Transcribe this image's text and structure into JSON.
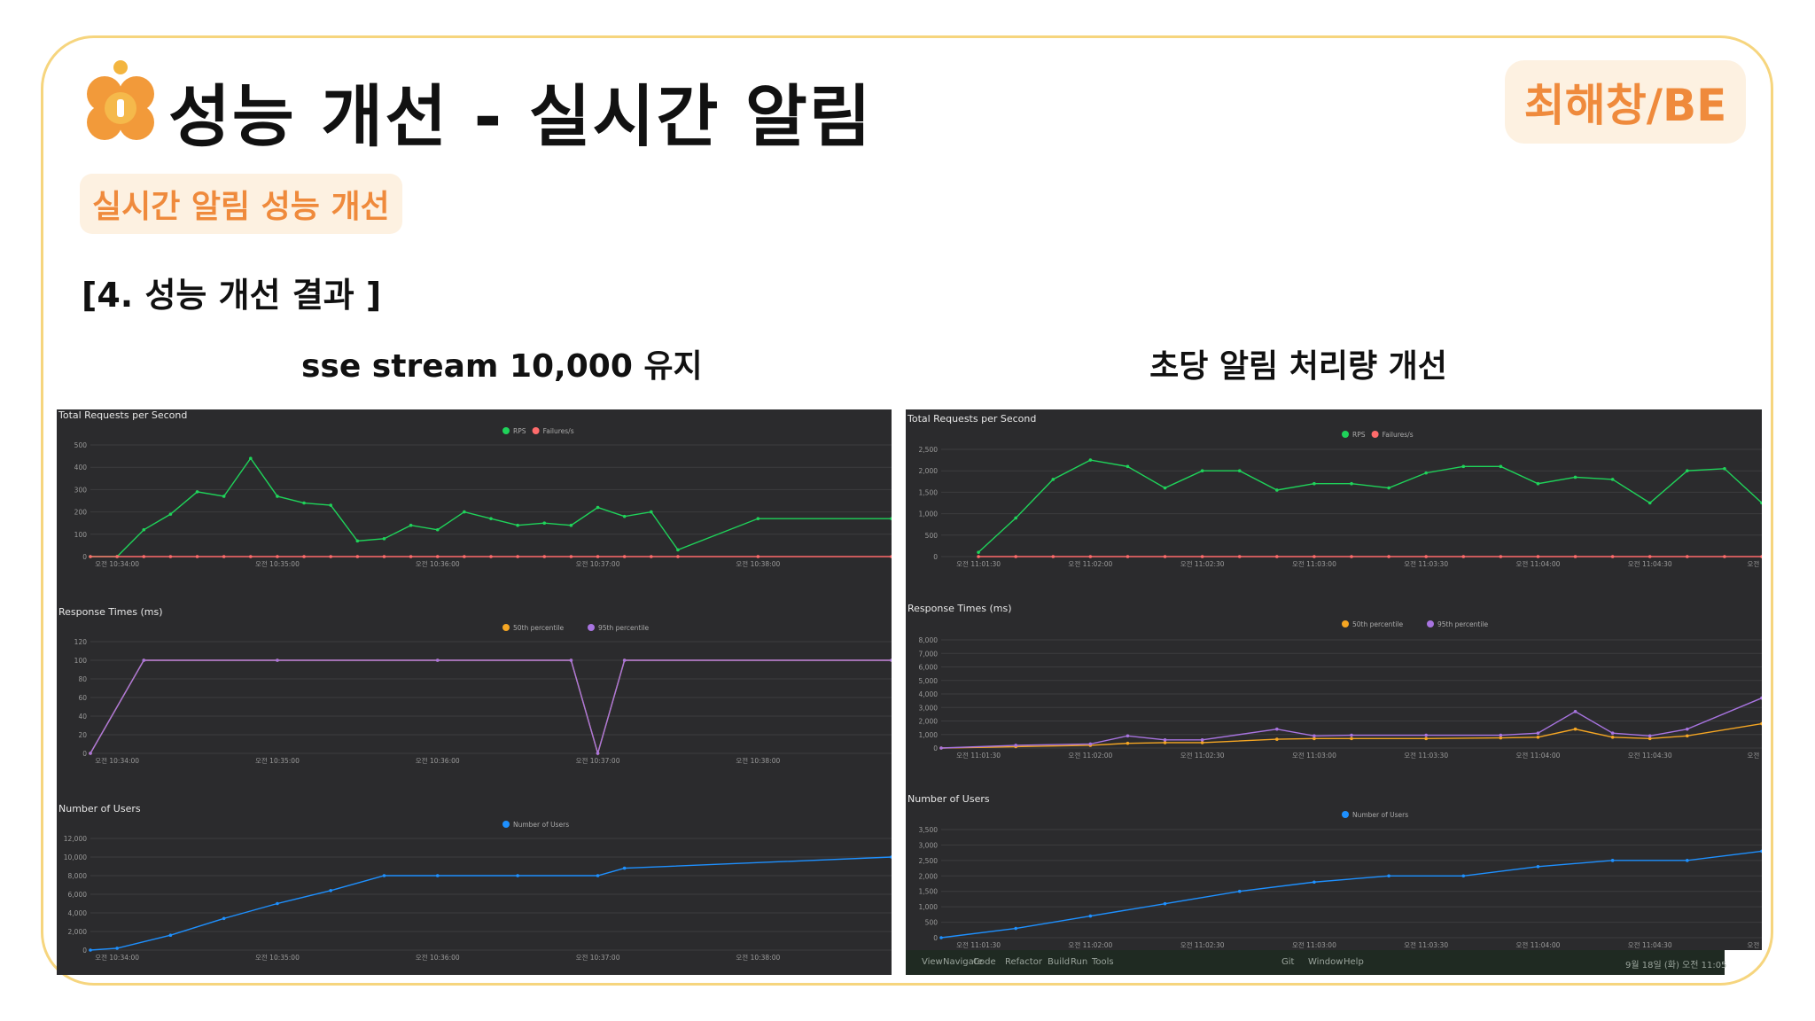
{
  "header": {
    "title": "성능 개선 - 실시간 알림",
    "author_badge": "최해창/BE",
    "subtitle": "실시간 알림 성능 개선",
    "section": "[4. 성능 개선 결과 ]"
  },
  "colors": {
    "accent": "#ef8a3c",
    "badge_bg": "#fdf1e1",
    "frame": "#f6d57e",
    "panel_bg": "#2b2b2d",
    "rps": "#1fd35a",
    "failures": "#ff6b6b",
    "p50": "#f5a623",
    "p95": "#a874e0",
    "users": "#1e90ff"
  },
  "left": {
    "caption": "sse stream 10,000 유지",
    "charts": {
      "rps": {
        "title": "Total Requests per Second",
        "legend": [
          "RPS",
          "Failures/s"
        ],
        "yticks": [
          "0",
          "100",
          "200",
          "300",
          "400",
          "500"
        ],
        "xticks": [
          "오전 10:34:00",
          "오전 10:35:00",
          "오전 10:36:00",
          "오전 10:37:00",
          "오전 10:38:00"
        ]
      },
      "response": {
        "title": "Response Times (ms)",
        "legend": [
          "50th percentile",
          "95th percentile"
        ],
        "yticks": [
          "0",
          "20",
          "40",
          "60",
          "80",
          "100",
          "120"
        ],
        "xticks": [
          "오전 10:34:00",
          "오전 10:35:00",
          "오전 10:36:00",
          "오전 10:37:00",
          "오전 10:38:00"
        ]
      },
      "users": {
        "title": "Number of Users",
        "legend": [
          "Number of Users"
        ],
        "yticks": [
          "0",
          "2,000",
          "4,000",
          "6,000",
          "8,000",
          "10,000",
          "12,000"
        ],
        "xticks": [
          "오전 10:34:00",
          "오전 10:35:00",
          "오전 10:36:00",
          "오전 10:37:00",
          "오전 10:38:00"
        ]
      }
    }
  },
  "right": {
    "caption": "초당 알림 처리량 개선",
    "charts": {
      "rps": {
        "title": "Total Requests per Second",
        "legend": [
          "RPS",
          "Failures/s"
        ],
        "yticks": [
          "0",
          "500",
          "1,000",
          "1,500",
          "2,000",
          "2,500"
        ],
        "xticks": [
          "오전 11:01:30",
          "오전 11:02:00",
          "오전 11:02:30",
          "오전 11:03:00",
          "오전 11:03:30",
          "오전 11:04:00",
          "오전 11:04:30",
          "오전 11:0"
        ]
      },
      "response": {
        "title": "Response Times (ms)",
        "legend": [
          "50th percentile",
          "95th percentile"
        ],
        "yticks": [
          "0",
          "1,000",
          "2,000",
          "3,000",
          "4,000",
          "5,000",
          "6,000",
          "7,000",
          "8,000"
        ],
        "xticks": [
          "오전 11:01:30",
          "오전 11:02:00",
          "오전 11:02:30",
          "오전 11:03:00",
          "오전 11:03:30",
          "오전 11:04:00",
          "오전 11:04:30",
          "오전 11:0"
        ]
      },
      "users": {
        "title": "Number of Users",
        "legend": [
          "Number of Users"
        ],
        "yticks": [
          "0",
          "500",
          "1,000",
          "1,500",
          "2,000",
          "2,500",
          "3,000",
          "3,500"
        ],
        "xticks": [
          "오전 11:01:30",
          "오전 11:02:00",
          "오전 11:02:30",
          "오전 11:03:00",
          "오전 11:03:30",
          "오전 11:04:00",
          "오전 11:04:30",
          "오전 11:0"
        ]
      }
    },
    "taskbar": {
      "menu": [
        "View",
        "Navigate",
        "Code",
        "Refactor",
        "Build",
        "Run",
        "Tools",
        "Git",
        "Window",
        "Help"
      ],
      "clock": "9월 18일 (화) 오전 11:05"
    }
  },
  "chart_data": [
    {
      "type": "line",
      "title": "Total Requests per Second",
      "x": [
        "10:33:50",
        "10:34:00",
        "10:34:10",
        "10:34:20",
        "10:34:30",
        "10:34:40",
        "10:34:50",
        "10:35:00",
        "10:35:10",
        "10:35:20",
        "10:35:30",
        "10:35:40",
        "10:35:50",
        "10:36:00",
        "10:36:10",
        "10:36:20",
        "10:36:30",
        "10:36:40",
        "10:36:50",
        "10:37:00",
        "10:37:10",
        "10:37:20",
        "10:37:30",
        "10:38:00",
        "10:38:50"
      ],
      "series": [
        {
          "name": "RPS",
          "values": [
            0,
            0,
            120,
            190,
            290,
            270,
            440,
            270,
            240,
            230,
            70,
            80,
            140,
            120,
            200,
            170,
            140,
            150,
            140,
            220,
            180,
            200,
            30,
            170,
            170
          ]
        },
        {
          "name": "Failures/s",
          "values": [
            0,
            0,
            0,
            0,
            0,
            0,
            0,
            0,
            0,
            0,
            0,
            0,
            0,
            0,
            0,
            0,
            0,
            0,
            0,
            0,
            0,
            0,
            0,
            0,
            0
          ]
        }
      ],
      "ylim": [
        0,
        500
      ]
    },
    {
      "type": "line",
      "title": "Response Times (ms)",
      "x": [
        "10:33:50",
        "10:34:10",
        "10:35:00",
        "10:36:00",
        "10:36:50",
        "10:37:00",
        "10:37:10",
        "10:38:50"
      ],
      "series": [
        {
          "name": "50th percentile",
          "values": [
            0,
            100,
            100,
            100,
            100,
            0,
            100,
            100
          ]
        },
        {
          "name": "95th percentile",
          "values": [
            0,
            100,
            100,
            100,
            100,
            0,
            100,
            100
          ]
        }
      ],
      "ylim": [
        0,
        120
      ]
    },
    {
      "type": "line",
      "title": "Number of Users",
      "x": [
        "10:33:50",
        "10:34:00",
        "10:34:20",
        "10:34:40",
        "10:35:00",
        "10:35:20",
        "10:35:40",
        "10:36:00",
        "10:36:30",
        "10:37:00",
        "10:37:10",
        "10:38:50"
      ],
      "series": [
        {
          "name": "Number of Users",
          "values": [
            0,
            200,
            1600,
            3400,
            5000,
            6400,
            8000,
            8000,
            8000,
            8000,
            8800,
            10000
          ]
        }
      ],
      "ylim": [
        0,
        12000
      ]
    },
    {
      "type": "line",
      "title": "Total Requests per Second",
      "x": [
        "11:01:30",
        "11:01:40",
        "11:01:50",
        "11:02:00",
        "11:02:10",
        "11:02:20",
        "11:02:30",
        "11:02:40",
        "11:02:50",
        "11:03:00",
        "11:03:10",
        "11:03:20",
        "11:03:30",
        "11:03:40",
        "11:03:50",
        "11:04:00",
        "11:04:10",
        "11:04:20",
        "11:04:30",
        "11:04:40",
        "11:04:50",
        "11:05:00"
      ],
      "series": [
        {
          "name": "RPS",
          "values": [
            100,
            900,
            1800,
            2250,
            2100,
            1600,
            2000,
            2000,
            1550,
            1700,
            1700,
            1600,
            1950,
            2100,
            2100,
            1700,
            1850,
            1800,
            1250,
            2000,
            2050,
            1250
          ]
        },
        {
          "name": "Failures/s",
          "values": [
            0,
            0,
            0,
            0,
            0,
            0,
            0,
            0,
            0,
            0,
            0,
            0,
            0,
            0,
            0,
            0,
            0,
            0,
            0,
            0,
            0,
            0
          ]
        }
      ],
      "ylim": [
        0,
        2500
      ]
    },
    {
      "type": "line",
      "title": "Response Times (ms)",
      "x": [
        "11:01:20",
        "11:01:40",
        "11:02:00",
        "11:02:10",
        "11:02:20",
        "11:02:30",
        "11:02:50",
        "11:03:00",
        "11:03:10",
        "11:03:30",
        "11:03:50",
        "11:04:00",
        "11:04:10",
        "11:04:20",
        "11:04:30",
        "11:04:40",
        "11:05:00"
      ],
      "series": [
        {
          "name": "50th percentile",
          "values": [
            0,
            100,
            200,
            350,
            400,
            400,
            650,
            700,
            700,
            700,
            750,
            800,
            1400,
            800,
            700,
            900,
            1800
          ]
        },
        {
          "name": "95th percentile",
          "values": [
            0,
            200,
            300,
            900,
            600,
            600,
            1400,
            900,
            950,
            950,
            950,
            1100,
            2700,
            1100,
            900,
            1400,
            3700
          ]
        }
      ],
      "ylim": [
        0,
        8000
      ]
    },
    {
      "type": "line",
      "title": "Number of Users",
      "x": [
        "11:01:20",
        "11:01:40",
        "11:02:00",
        "11:02:20",
        "11:02:40",
        "11:03:00",
        "11:03:20",
        "11:03:40",
        "11:04:00",
        "11:04:20",
        "11:04:40",
        "11:05:00"
      ],
      "series": [
        {
          "name": "Number of Users",
          "values": [
            0,
            300,
            700,
            1100,
            1500,
            1800,
            2000,
            2000,
            2300,
            2500,
            2500,
            2800
          ]
        }
      ],
      "ylim": [
        0,
        3500
      ]
    }
  ]
}
